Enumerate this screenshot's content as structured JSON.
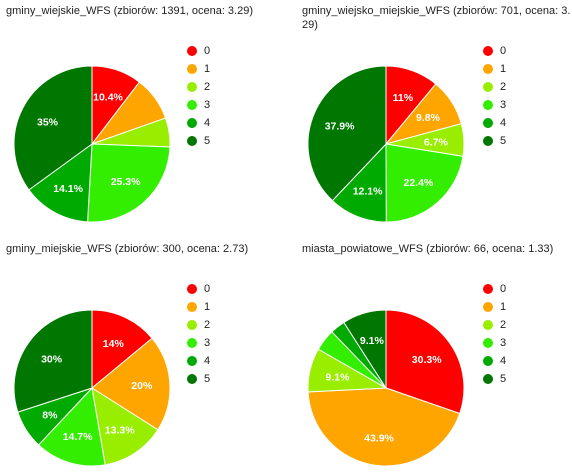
{
  "legend_colors": [
    "#ff0000",
    "#ffa500",
    "#99ee00",
    "#33ee00",
    "#00aa00",
    "#007700"
  ],
  "chart_data": [
    {
      "type": "pie",
      "title": "gminy_wiejskie_WFS (zbiorów: 1391, ocena: 3.29)",
      "categories": [
        "0",
        "1",
        "2",
        "3",
        "4",
        "5"
      ],
      "values": [
        10.4,
        9.2,
        6.0,
        25.3,
        14.1,
        35.0
      ],
      "labels": [
        "10.4%",
        "",
        "",
        "25.3%",
        "14.1%",
        "35%"
      ],
      "legend_position": "right"
    },
    {
      "type": "pie",
      "title": "gminy_wiejsko_miejskie_WFS (zbiorów: 701, ocena: 3.29)",
      "categories": [
        "0",
        "1",
        "2",
        "3",
        "4",
        "5"
      ],
      "values": [
        11.0,
        9.8,
        6.7,
        22.4,
        12.1,
        37.9
      ],
      "labels": [
        "11%",
        "9.8%",
        "6.7%",
        "22.4%",
        "12.1%",
        "37.9%"
      ],
      "legend_position": "right"
    },
    {
      "type": "pie",
      "title": "gminy_miejskie_WFS (zbiorów: 300, ocena: 2.73)",
      "categories": [
        "0",
        "1",
        "2",
        "3",
        "4",
        "5"
      ],
      "values": [
        14.0,
        20.0,
        13.3,
        14.7,
        8.0,
        30.0
      ],
      "labels": [
        "14%",
        "20%",
        "13.3%",
        "14.7%",
        "8%",
        "30%"
      ],
      "legend_position": "right"
    },
    {
      "type": "pie",
      "title": "miasta_powiatowe_WFS (zbiorów: 66, ocena: 1.33)",
      "categories": [
        "0",
        "1",
        "2",
        "3",
        "4",
        "5"
      ],
      "values": [
        30.3,
        43.9,
        9.1,
        4.5,
        3.1,
        9.1
      ],
      "labels": [
        "30.3%",
        "43.9%",
        "9.1%",
        "",
        "",
        "9.1%"
      ],
      "legend_position": "right"
    }
  ]
}
